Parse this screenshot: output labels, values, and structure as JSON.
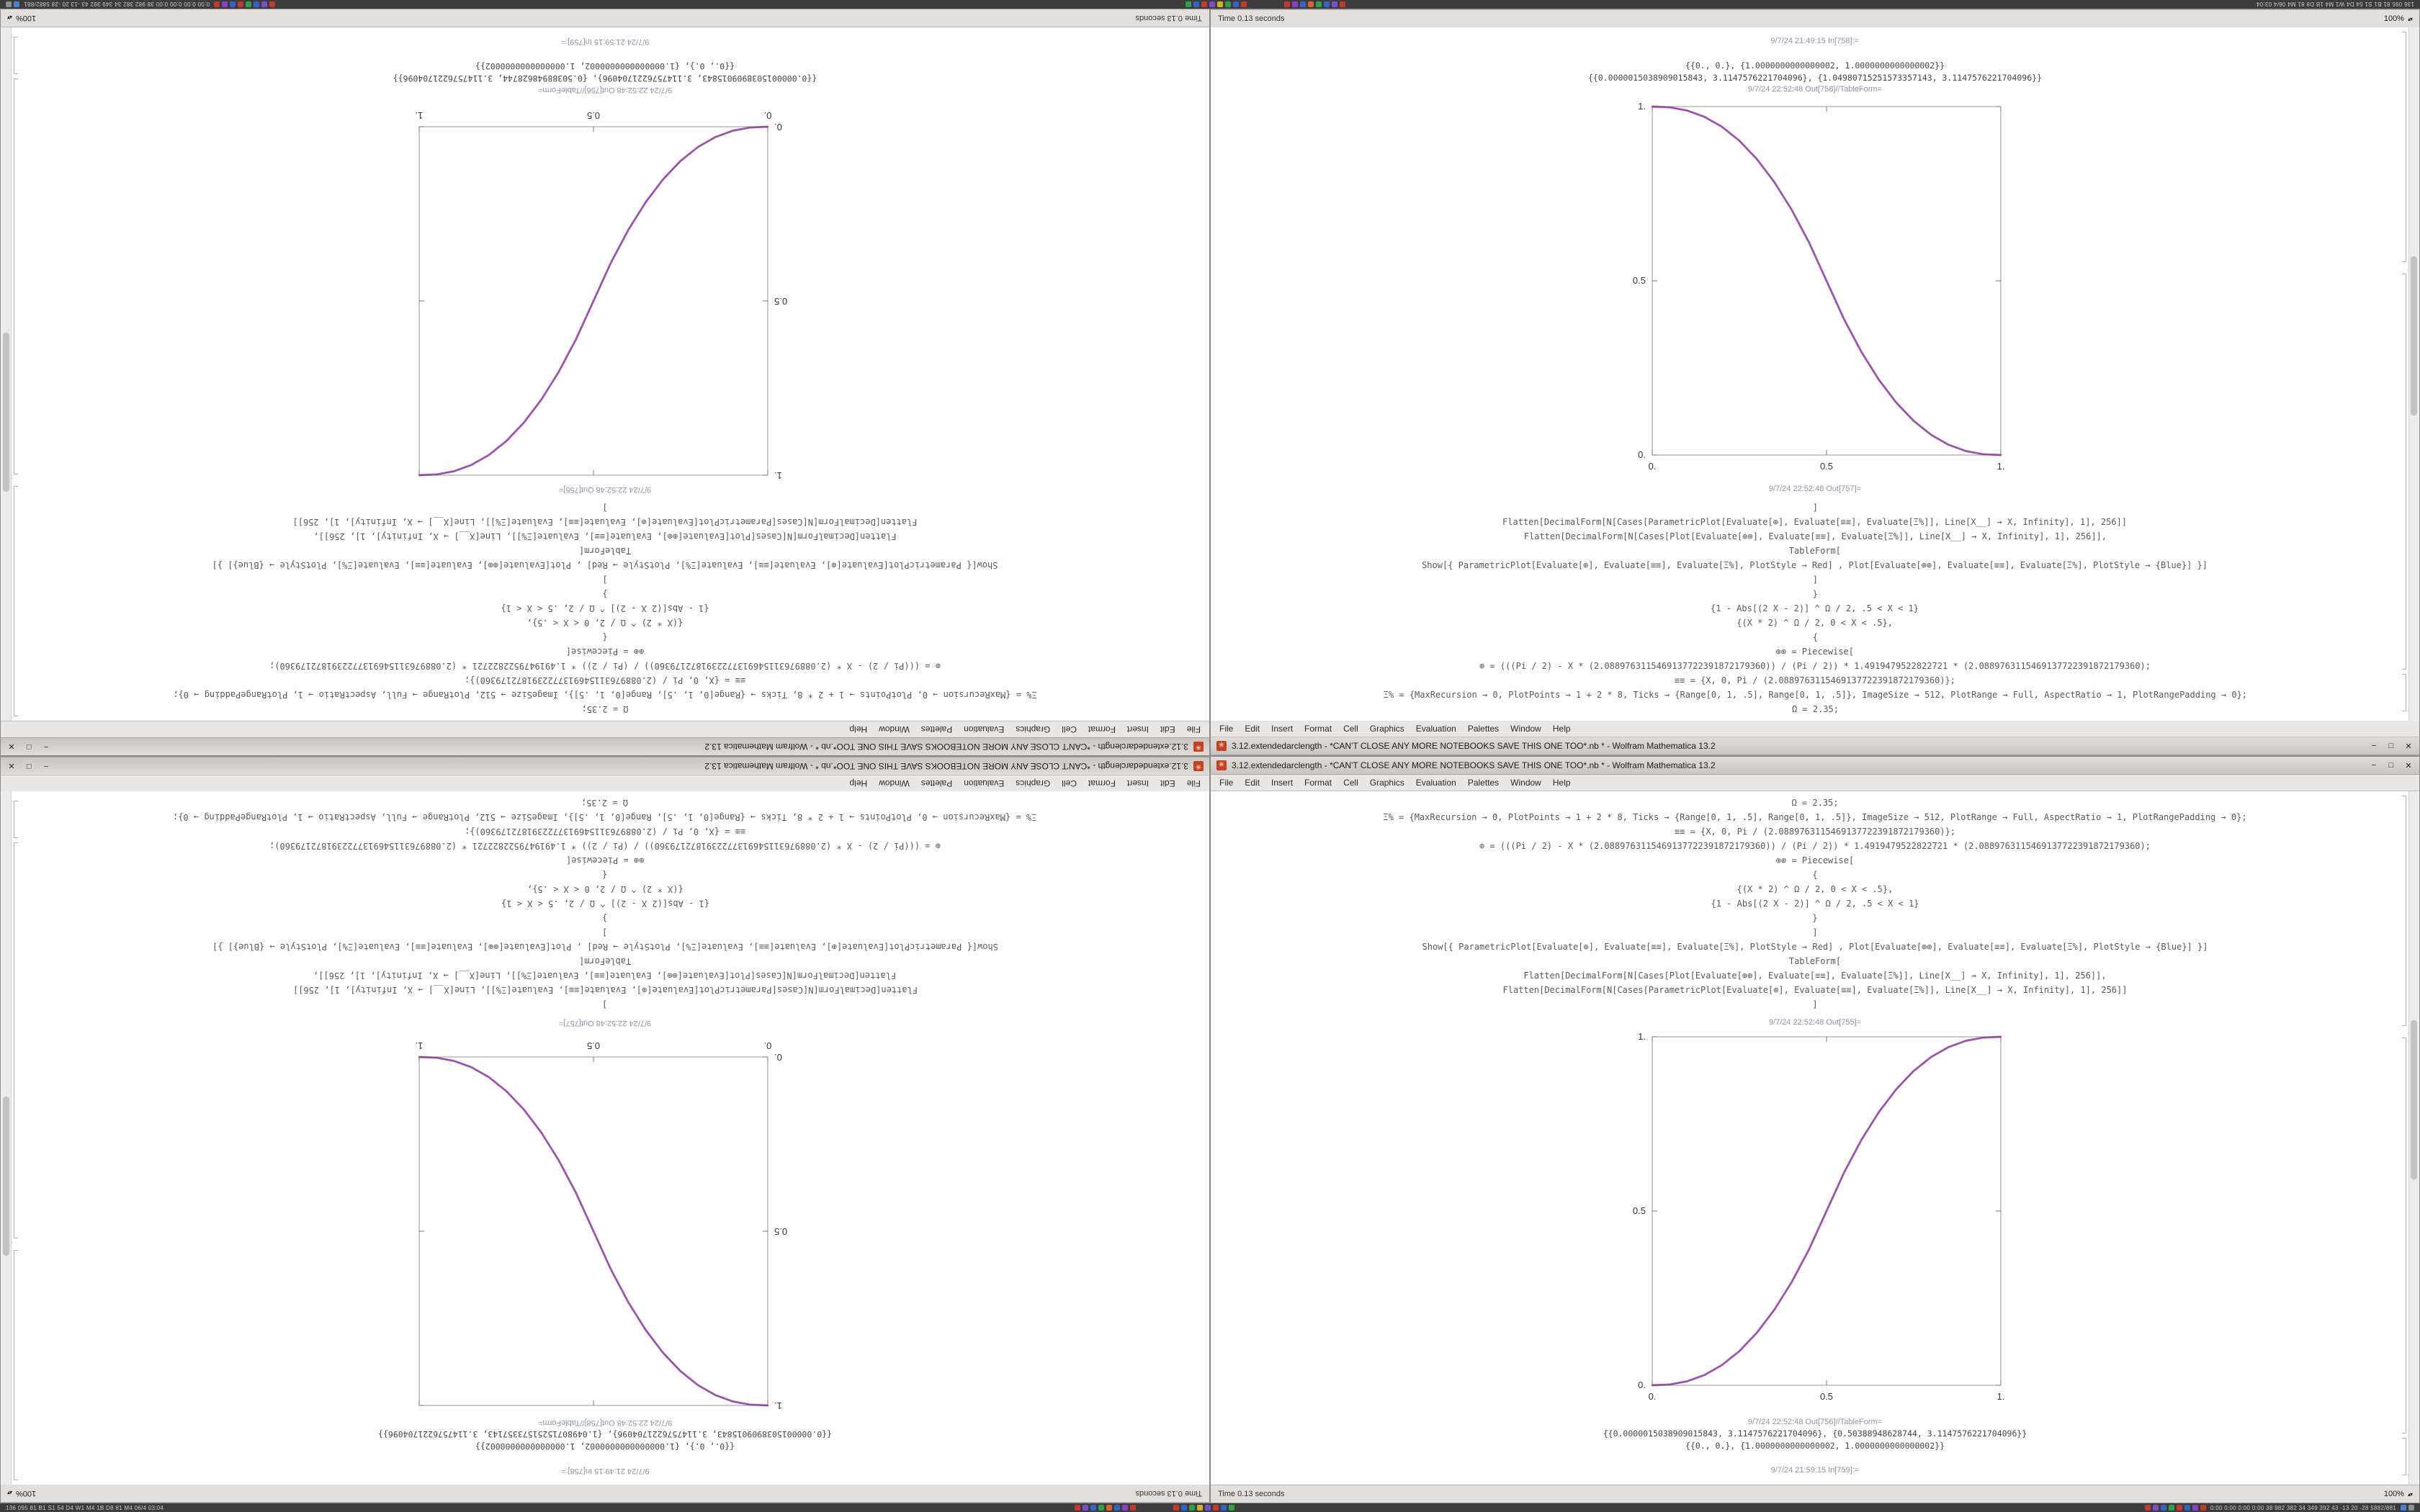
{
  "taskbar": {
    "left_text": "136 095 81 B1 S1 54 D4 W1 M4 1B D8 81 M4 06/4 03:04",
    "right_text": "0:00 0:00 0:00 0:00 38 982 382 34 349 392 43 -13 20 -28 5882/881",
    "left_icons": [
      "#4a7fd4",
      "#8a8f98"
    ],
    "center_left_icons": [
      "#c23a2f",
      "#7a4fc9",
      "#3563c9",
      "#2f9e4f",
      "#d4622a",
      "#3563c9",
      "#8a3fc9",
      "#c23a2f"
    ],
    "center_right_icons": [
      "#c23a2f",
      "#3563c9",
      "#2f9e4f",
      "#c9b52f",
      "#7a4fc9",
      "#c23a2f",
      "#3563c9",
      "#2f9e4f"
    ],
    "tray_icons": [
      "#c23a2f",
      "#7a4fc9",
      "#3563c9",
      "#2f9e4f",
      "#c23a2f",
      "#3563c9",
      "#8a3fc9",
      "#c23a2f"
    ]
  },
  "shared": {
    "title": "3.12.extendedarclength - *CAN'T CLOSE ANY MORE NOTEBOOKS SAVE THIS ONE TOO*.nb * - Wolfram Mathematica 13.2",
    "menu": [
      "File",
      "Edit",
      "Insert",
      "Format",
      "Cell",
      "Graphics",
      "Evaluation",
      "Palettes",
      "Window",
      "Help"
    ],
    "minimize_glyph": "−",
    "maximize_glyph": "□",
    "close_glyph": "✕",
    "app_icon_glyph": "✳",
    "status_left": "Time 0.13 seconds",
    "zoom": "100%",
    "code_lines": [
      "Ω = 2.35;",
      "Ξ% = {MaxRecursion → 0, PlotPoints → 1 + 2 * 8, Ticks → {Range[0, 1, .5], Range[0, 1, .5]}, ImageSize → 512, PlotRange → Full, AspectRatio → 1, PlotRangePadding → 0};",
      "≡≡ = {X, 0, Pi / (2.0889763115469137722391872179360)};",
      "⊕ = (((Pi / 2) - X * (2.0889763115469137722391872179360)) / (Pi / 2)) * 1.4919479522822721 * (2.0889763115469137722391872179360);",
      "⊕⊕ = Piecewise[",
      "{",
      "{(X * 2) ^ Ω / 2, 0 < X < .5},",
      "{1 - Abs[(2 X - 2)] ^ Ω / 2, .5 < X < 1}",
      "}",
      "]",
      "Show[{ ParametricPlot[Evaluate[⊕], Evaluate[≡≡], Evaluate[Ξ%], PlotStyle → Red] ,  Plot[Evaluate[⊕⊕], Evaluate[≡≡], Evaluate[Ξ%], PlotStyle → {Blue}] }]",
      "TableForm[",
      "Flatten[DecimalForm[N[Cases[Plot[Evaluate[⊕⊕], Evaluate[≡≡], Evaluate[Ξ%]], Line[X__] → X, Infinity], 1], 256]],",
      "Flatten[DecimalForm[N[Cases[ParametricPlot[Evaluate[⊕], Evaluate[≡≡], Evaluate[Ξ%]], Line[X__] → X, Infinity], 1], 256]]",
      "]"
    ]
  },
  "window_a": {
    "out_plot_label": "9/7/24 22:52:48 Out[755]=",
    "out_table_label": "9/7/24 22:52:48 Out[756]//TableForm=",
    "output_rows": [
      "{{0.0000015038909015843, 3.1147576221704096}, {0.50388948628744, 3.1147576221704096}}",
      "{{0., 0.}, {1.0000000000000002, 1.0000000000000002}}"
    ],
    "next_in_label": "9/7/24 21:59:15 In[759]:=",
    "plot": {
      "type": "line",
      "x": [
        0,
        0.05,
        0.1,
        0.15,
        0.2,
        0.25,
        0.3,
        0.35,
        0.4,
        0.45,
        0.5,
        0.55,
        0.6,
        0.65,
        0.7,
        0.75,
        0.8,
        0.85,
        0.9,
        0.95,
        1
      ],
      "y": [
        0,
        0.0022,
        0.0114,
        0.0295,
        0.058,
        0.098,
        0.1505,
        0.2163,
        0.296,
        0.3903,
        0.5,
        0.6097,
        0.704,
        0.7837,
        0.8495,
        0.902,
        0.942,
        0.9705,
        0.9886,
        0.9978,
        1
      ],
      "xticks": [
        "0.",
        "0.5",
        "1."
      ],
      "yticks": [
        "0.",
        "0.5",
        "1."
      ],
      "curve_colors": [
        "#d42a55",
        "#4433cc"
      ]
    }
  },
  "window_c": {
    "out_plot_label": "9/7/24 22:52:48 Out[757]=",
    "out_table_label": "9/7/24 22:52:48 Out[758]//TableForm=",
    "output_rows": [
      "{{0.0000015038909015843, 3.1147576221704096}, {1.04980715251573357143, 3.1147576221704096}}",
      "{{0., 0.}, {1.0000000000000002, 1.0000000000000002}}"
    ],
    "next_in_label": "9/7/24 21:49:15 In[758]:=",
    "plot": {
      "type": "line",
      "x": [
        0,
        0.05,
        0.1,
        0.15,
        0.2,
        0.25,
        0.3,
        0.35,
        0.4,
        0.45,
        0.5,
        0.55,
        0.6,
        0.65,
        0.7,
        0.75,
        0.8,
        0.85,
        0.9,
        0.95,
        1
      ],
      "y": [
        1,
        0.9978,
        0.9886,
        0.9705,
        0.942,
        0.902,
        0.8495,
        0.7837,
        0.704,
        0.6097,
        0.5,
        0.3903,
        0.296,
        0.2163,
        0.1505,
        0.098,
        0.058,
        0.0295,
        0.0114,
        0.0022,
        0
      ],
      "xticks": [
        "0.",
        "0.5",
        "1."
      ],
      "yticks": [
        "0.",
        "0.5",
        "1."
      ],
      "curve_colors": [
        "#d42a55",
        "#4433cc"
      ]
    }
  }
}
